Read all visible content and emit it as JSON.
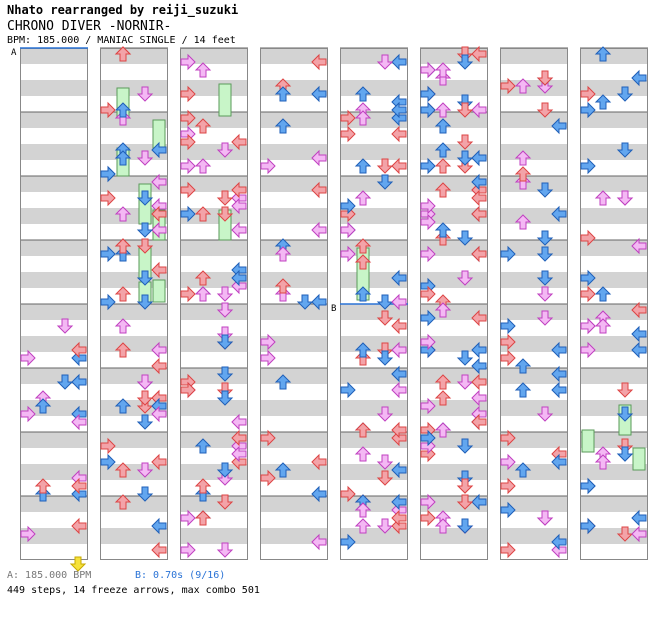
{
  "header": {
    "credit": "Nhato rearranged by reiji_suzuki",
    "title": "CHRONO DIVER -NORNIR-",
    "info": "BPM: 185.000 / MANIAC SINGLE / 14 feet"
  },
  "markers": {
    "a": "A",
    "b": "B"
  },
  "footer": {
    "bpm": "A: 185.000 BPM",
    "stop": "B: 0.70s (9/16)",
    "summary": "449 steps, 14 freeze arrows, max combo 501"
  },
  "colors": {
    "red": "#f3a3a8",
    "blue": "#62a6ef",
    "pink": "#f4b8f4",
    "freeze": "#c8f5c8",
    "band": "#d3d3d3"
  },
  "chart_data": {
    "type": "step-chart",
    "columns": 8,
    "measures_per_column": 8,
    "stop_marker": {
      "label": "B",
      "column": 5,
      "measure": 4
    },
    "freeze_arrows_visible": 14
  }
}
